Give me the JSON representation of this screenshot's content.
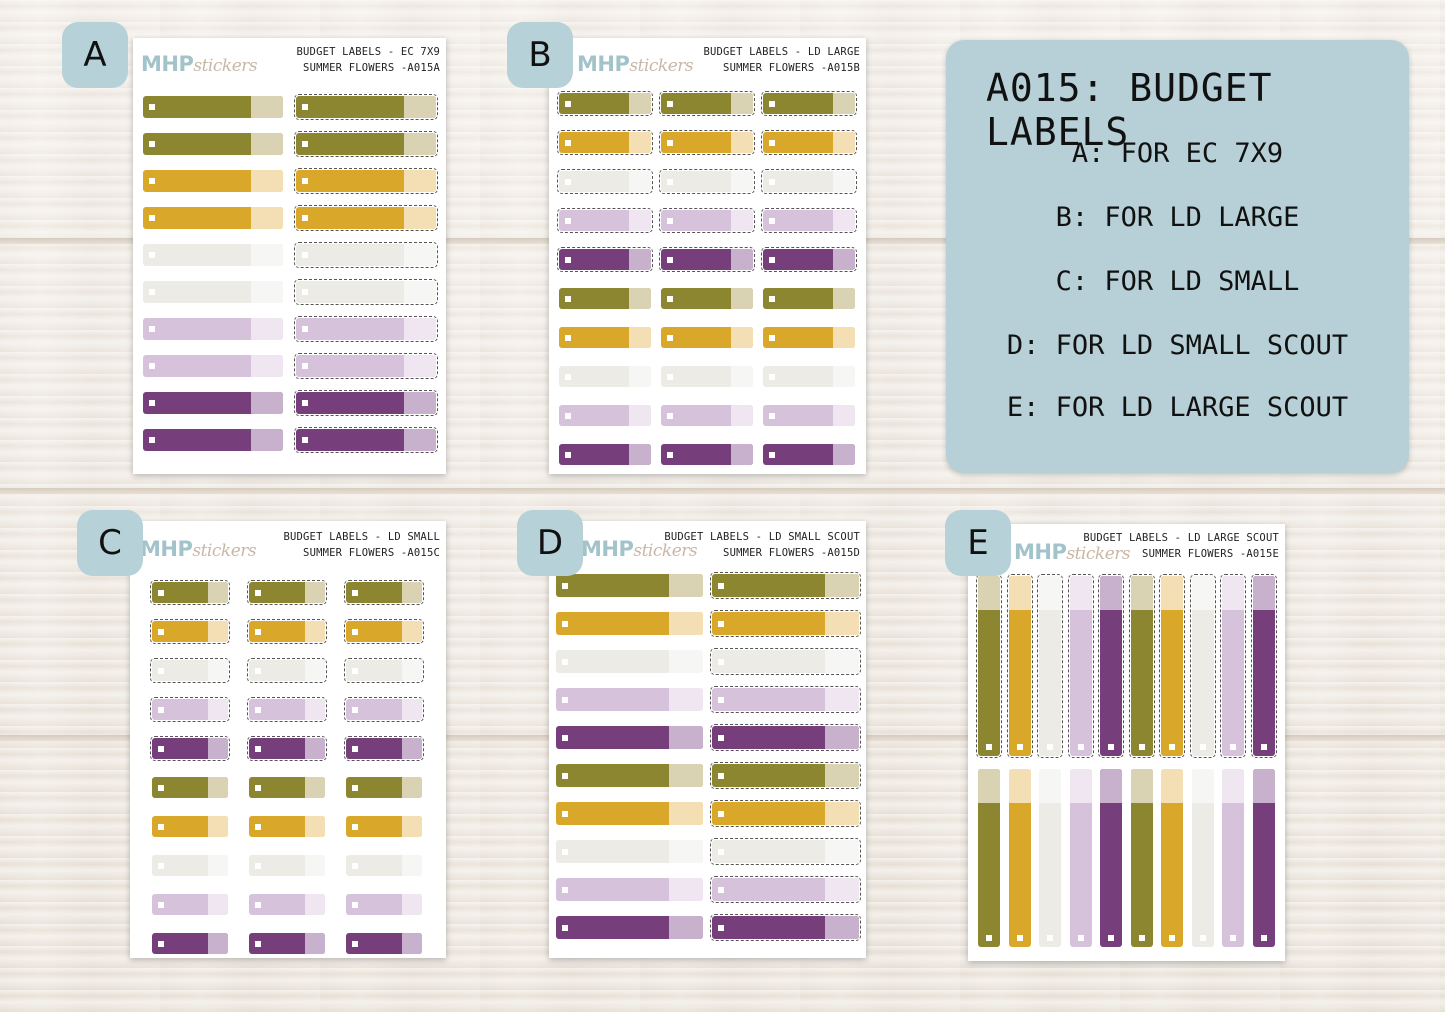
{
  "panel": {
    "heading": "A015: BUDGET LABELS",
    "lines": [
      "A: FOR EC 7X9",
      "B: FOR LD LARGE",
      "C: FOR LD SMALL",
      "D: FOR LD SMALL SCOUT",
      "E: FOR LD LARGE SCOUT"
    ]
  },
  "brand": {
    "logo_main": "MHP",
    "logo_sub": "stickers"
  },
  "colors": {
    "olive": "#8c8630",
    "olive_tab": "#d9d3b4",
    "mustard": "#d9a82a",
    "mustard_tab": "#f4dfb4",
    "light": "#ecebe6",
    "light_tab": "#f6f6f4",
    "lilac": "#d6c2da",
    "lilac_tab": "#efe6f1",
    "purple": "#763f7c",
    "purple_tab": "#c7b1cc"
  },
  "sheets": {
    "A": {
      "badge": "A",
      "title1": "BUDGET LABELS - EC 7X9",
      "title2": "SUMMER FLOWERS -A015A"
    },
    "B": {
      "badge": "B",
      "title1": "BUDGET LABELS - LD LARGE",
      "title2": "SUMMER FLOWERS -A015B"
    },
    "C": {
      "badge": "C",
      "title1": "BUDGET LABELS - LD SMALL",
      "title2": "SUMMER FLOWERS -A015C"
    },
    "D": {
      "badge": "D",
      "title1": "BUDGET LABELS - LD SMALL SCOUT",
      "title2": "SUMMER FLOWERS -A015D"
    },
    "E": {
      "badge": "E",
      "title1": "BUDGET LABELS - LD LARGE SCOUT",
      "title2": "SUMMER FLOWERS -A015E"
    }
  }
}
